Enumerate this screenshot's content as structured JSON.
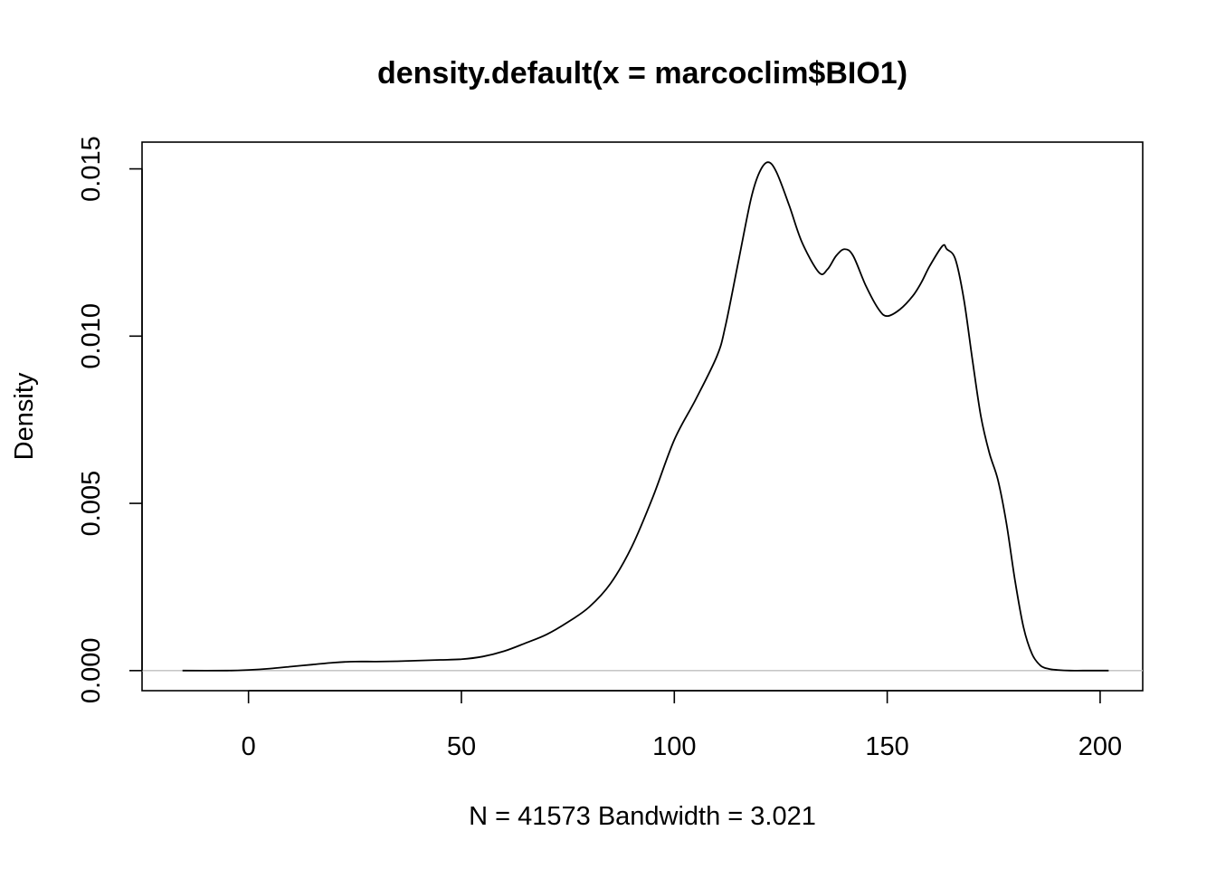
{
  "chart_data": {
    "type": "line",
    "title": "density.default(x = marcoclim$BIO1)",
    "xlabel": "N = 41573   Bandwidth = 3.021",
    "ylabel": "Density",
    "xlim": [
      -25,
      210
    ],
    "ylim": [
      -0.0006,
      0.0158
    ],
    "x_ticks": [
      0,
      50,
      100,
      150,
      200
    ],
    "x_tick_labels": [
      "0",
      "50",
      "100",
      "150",
      "200"
    ],
    "y_ticks": [
      0.0,
      0.005,
      0.01,
      0.015
    ],
    "y_tick_labels": [
      "0.000",
      "0.005",
      "0.010",
      "0.015"
    ],
    "baseline": 0,
    "baseline_color": "#bebebe",
    "line_color": "#000000",
    "grid": false,
    "series": [
      {
        "x": [
          -15.5,
          -5,
          0,
          5,
          10,
          15,
          20,
          25,
          30,
          35,
          40,
          45,
          50,
          55,
          60,
          65,
          70,
          75,
          80,
          85,
          90,
          95,
          100,
          105,
          110,
          112,
          115,
          118,
          120,
          122,
          124,
          127,
          130,
          134,
          136,
          138,
          140,
          142,
          145,
          148,
          150,
          153,
          156,
          158,
          160,
          163,
          164,
          166,
          168,
          170,
          172,
          174,
          176,
          178,
          180,
          182,
          184,
          186,
          188,
          190,
          193,
          196,
          202
        ],
        "y": [
          0.0,
          0.0,
          2e-05,
          6e-05,
          0.00012,
          0.00018,
          0.00024,
          0.00027,
          0.00027,
          0.00028,
          0.0003,
          0.00032,
          0.00034,
          0.00042,
          0.00058,
          0.00082,
          0.00108,
          0.00145,
          0.0019,
          0.0026,
          0.0037,
          0.0052,
          0.0069,
          0.0081,
          0.0094,
          0.0103,
          0.0122,
          0.0141,
          0.0149,
          0.0152,
          0.0149,
          0.0139,
          0.0128,
          0.0119,
          0.012,
          0.0124,
          0.0126,
          0.0124,
          0.0115,
          0.0108,
          0.0106,
          0.0108,
          0.0112,
          0.0116,
          0.0121,
          0.0127,
          0.0126,
          0.0123,
          0.0111,
          0.0093,
          0.0076,
          0.0065,
          0.0057,
          0.0044,
          0.0027,
          0.0013,
          0.0005,
          0.00015,
          5e-05,
          2e-05,
          0.0,
          0.0,
          0.0
        ]
      }
    ]
  }
}
